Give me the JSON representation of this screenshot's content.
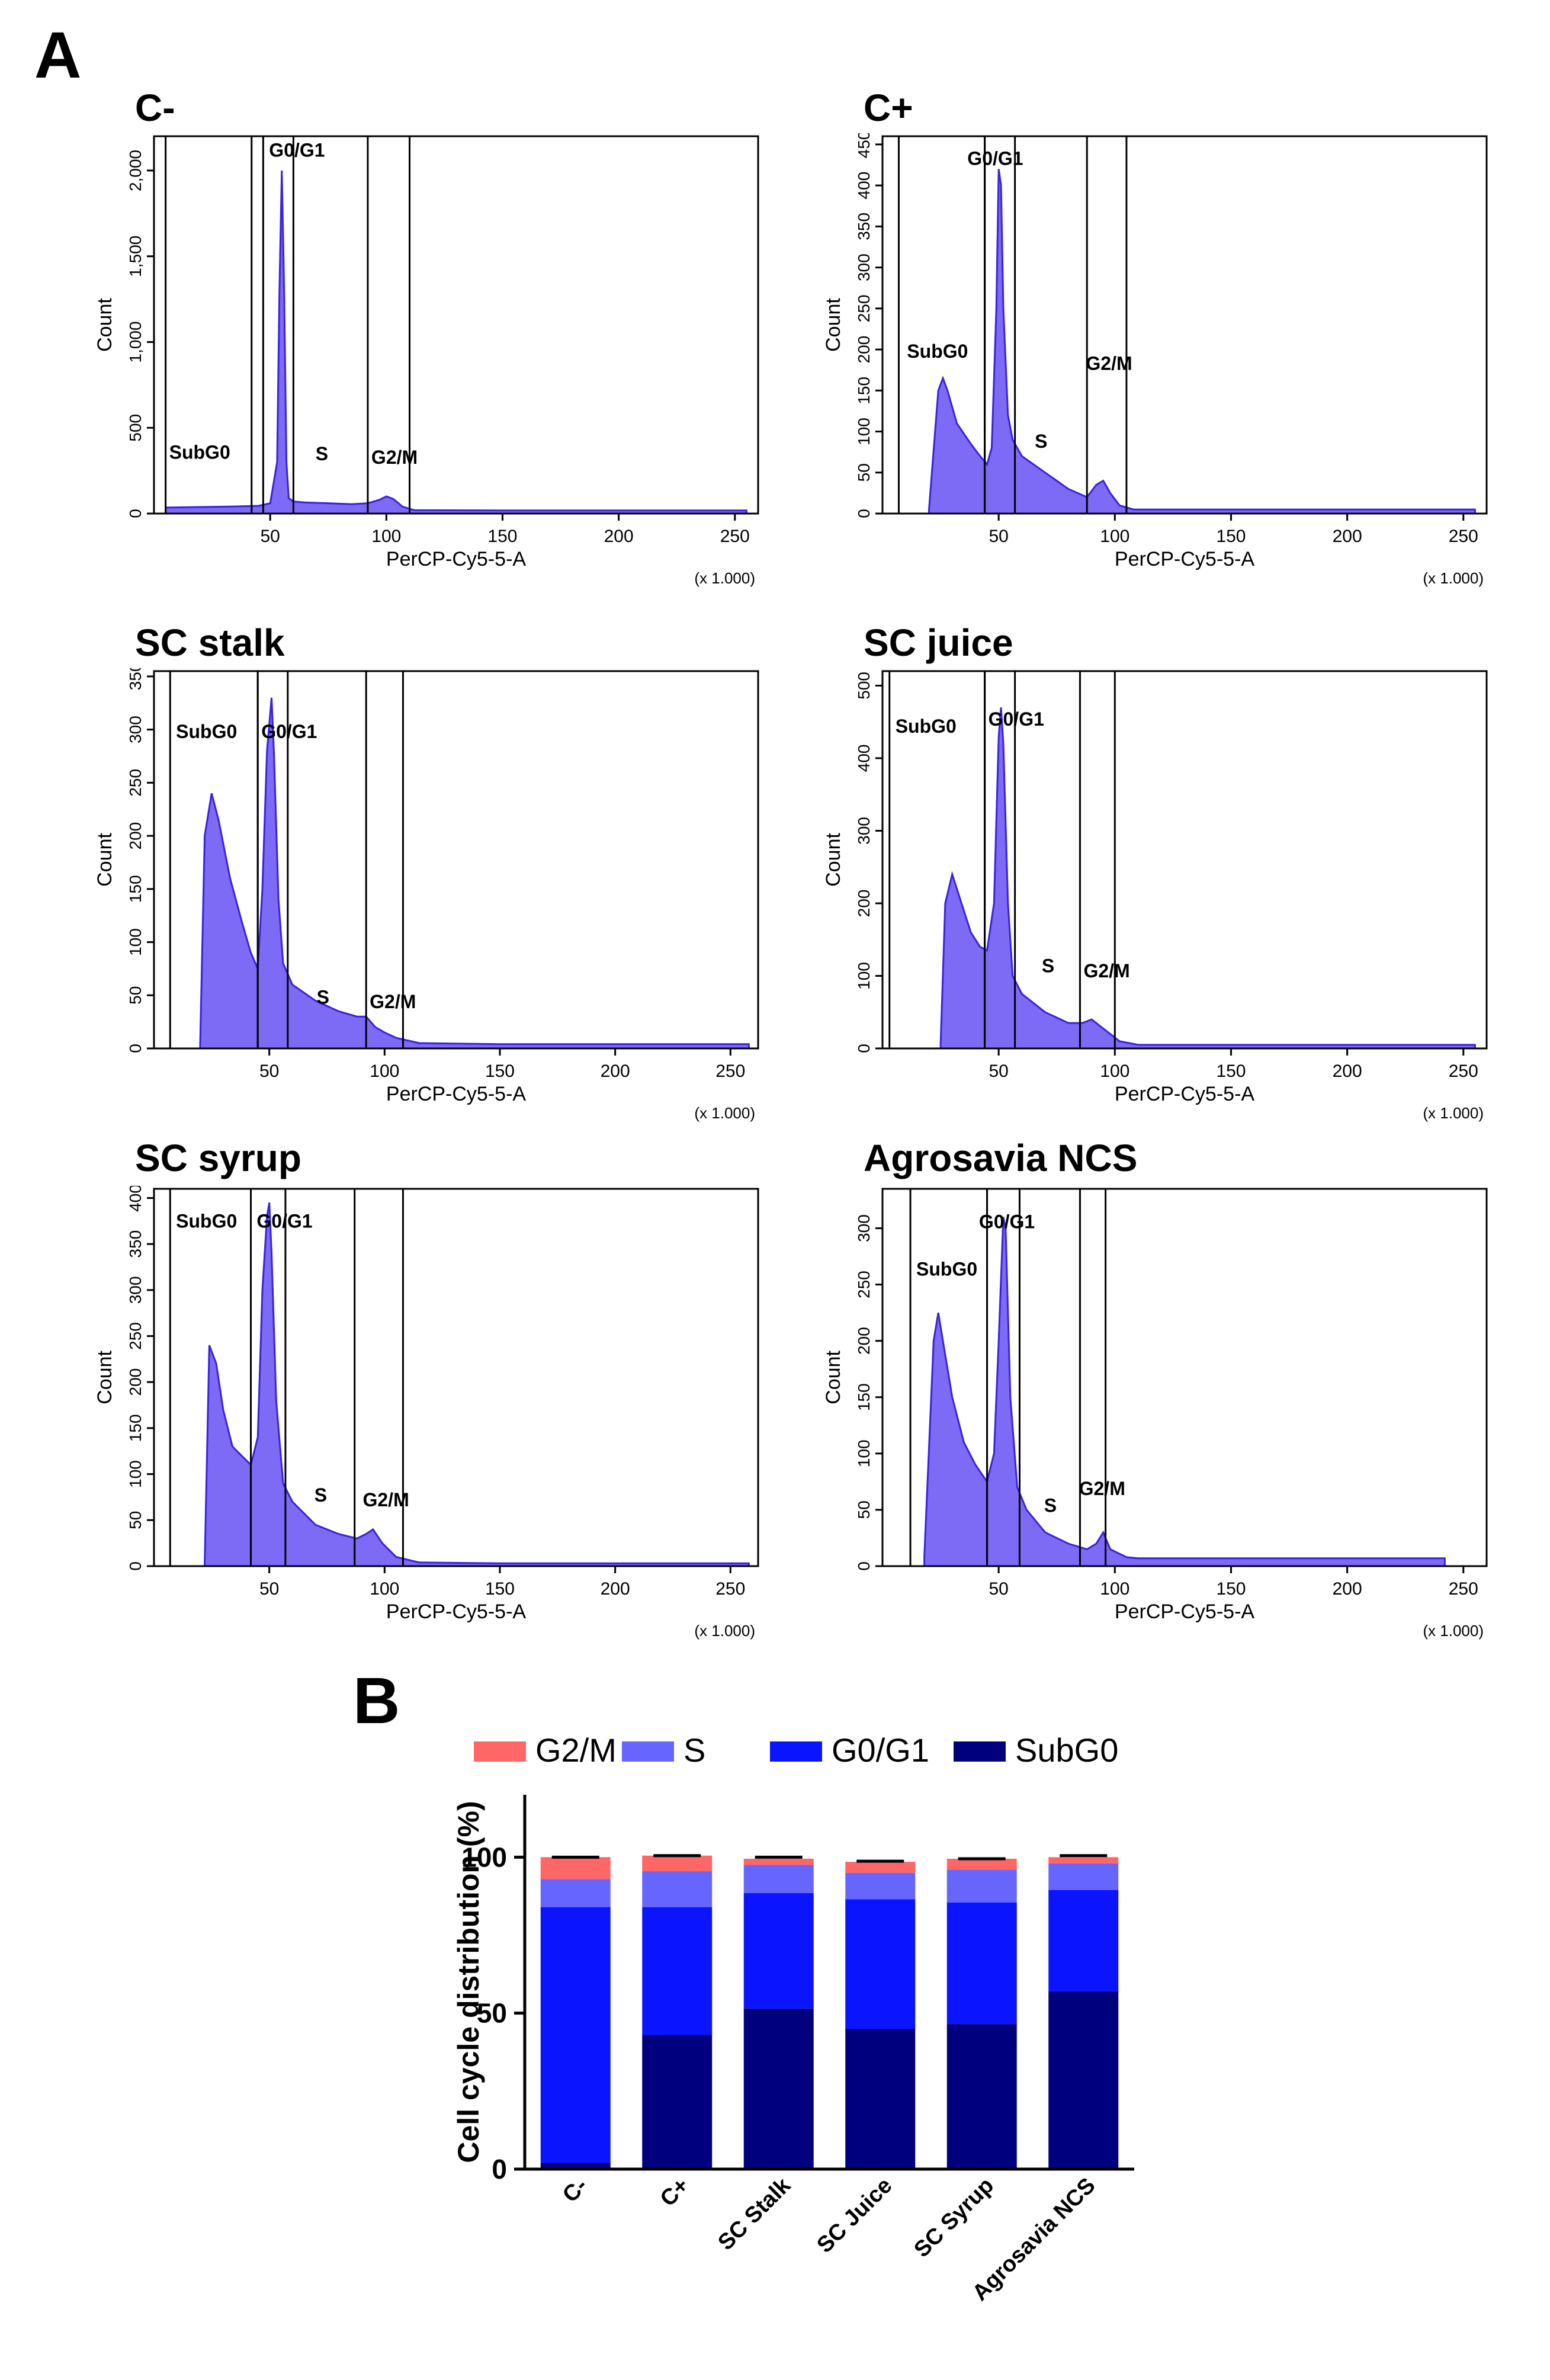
{
  "panel_a_label": "A",
  "panel_b_label": "B",
  "colors": {
    "subg0": "#00007f",
    "g0g1": "#0a14ff",
    "s": "#6666ff",
    "g2m": "#ff6666",
    "hist_fill": "#7d6af5",
    "hist_edge": "#3a22e0"
  },
  "chart_data": [
    {
      "type": "area",
      "title": "C-",
      "xlabel": "PerCP-Cy5-5-A",
      "ylabel": "Count",
      "x_scale_note": "(x 1.000)",
      "xlim": [
        0,
        260
      ],
      "xticks": [
        50,
        100,
        150,
        200,
        250
      ],
      "xtick_labels": [
        "50",
        "100",
        "150",
        "200",
        "250"
      ],
      "ylim": [
        0,
        2200
      ],
      "yticks": [
        0,
        500,
        1000,
        1500,
        2000
      ],
      "ytick_labels": [
        "0",
        "500",
        "1,000",
        "1,500",
        "2,000"
      ],
      "x": [
        5,
        30,
        45,
        50,
        53,
        54,
        55,
        56,
        57,
        58,
        60,
        65,
        75,
        85,
        92,
        97,
        100,
        103,
        107,
        112,
        150,
        200,
        255
      ],
      "y": [
        35,
        40,
        45,
        60,
        300,
        1300,
        2000,
        1300,
        300,
        90,
        70,
        65,
        60,
        55,
        60,
        80,
        100,
        85,
        40,
        20,
        18,
        18,
        18
      ],
      "gates": [
        {
          "label": "SubG0",
          "lines": [
            5,
            42
          ],
          "label_x": 5,
          "label_y": 320
        },
        {
          "label": "G0/G1",
          "lines": [
            47,
            60
          ],
          "label_x": 48,
          "label_y": 2080
        },
        {
          "label": "S",
          "label_x": 68,
          "label_y": 310
        },
        {
          "label": "G2/M",
          "lines": [
            92,
            110
          ],
          "label_x": 92,
          "label_y": 290
        }
      ]
    },
    {
      "type": "area",
      "title": "C+",
      "xlabel": "PerCP-Cy5-5-A",
      "ylabel": "Count",
      "x_scale_note": "(x 1.000)",
      "xlim": [
        0,
        260
      ],
      "xticks": [
        50,
        100,
        150,
        200,
        250
      ],
      "xtick_labels": [
        "50",
        "100",
        "150",
        "200",
        "250"
      ],
      "ylim": [
        0,
        460
      ],
      "yticks": [
        0,
        50,
        100,
        150,
        200,
        250,
        300,
        350,
        400,
        450
      ],
      "ytick_labels": [
        "0",
        "50",
        "100",
        "150",
        "200",
        "250",
        "300",
        "350",
        "400",
        "450"
      ],
      "x": [
        20,
        24,
        26,
        28,
        32,
        38,
        42,
        45,
        47,
        49,
        50,
        51,
        52,
        54,
        56,
        60,
        70,
        80,
        88,
        92,
        95,
        98,
        102,
        108,
        130,
        200,
        255
      ],
      "y": [
        5,
        150,
        165,
        150,
        110,
        85,
        70,
        60,
        80,
        250,
        420,
        400,
        250,
        120,
        90,
        70,
        50,
        30,
        20,
        35,
        40,
        25,
        10,
        5,
        5,
        5,
        5
      ],
      "gates": [
        {
          "label": "SubG0",
          "lines": [
            7,
            44
          ],
          "label_x": 9,
          "label_y": 190
        },
        {
          "label": "G0/G1",
          "lines": [
            44,
            57
          ],
          "label_x": 35,
          "label_y": 425
        },
        {
          "label": "S",
          "label_x": 64,
          "label_y": 80
        },
        {
          "label": "G2/M",
          "lines": [
            88,
            105
          ],
          "label_x": 86,
          "label_y": 175
        }
      ]
    },
    {
      "type": "area",
      "title": "SC stalk",
      "xlabel": "PerCP-Cy5-5-A",
      "ylabel": "Count",
      "x_scale_note": "(x 1.000)",
      "xlim": [
        0,
        262
      ],
      "xticks": [
        50,
        100,
        150,
        200,
        250
      ],
      "xtick_labels": [
        "50",
        "100",
        "150",
        "200",
        "250"
      ],
      "ylim": [
        0,
        355
      ],
      "yticks": [
        0,
        50,
        100,
        150,
        200,
        250,
        300,
        350
      ],
      "ytick_labels": [
        "0",
        "50",
        "100",
        "150",
        "200",
        "250",
        "300",
        "350"
      ],
      "x": [
        20,
        22,
        25,
        28,
        33,
        38,
        42,
        45,
        47,
        49,
        51,
        52,
        54,
        56,
        60,
        70,
        80,
        88,
        92,
        96,
        100,
        105,
        115,
        150,
        200,
        258
      ],
      "y": [
        2,
        200,
        240,
        215,
        160,
        120,
        90,
        75,
        150,
        280,
        330,
        280,
        140,
        80,
        60,
        45,
        35,
        30,
        30,
        20,
        15,
        10,
        5,
        4,
        4,
        4
      ],
      "gates": [
        {
          "label": "SubG0",
          "lines": [
            7,
            45
          ],
          "label_x": 8,
          "label_y": 292
        },
        {
          "label": "G0/G1",
          "lines": [
            45,
            58
          ],
          "label_x": 45,
          "label_y": 292
        },
        {
          "label": "S",
          "label_x": 69,
          "label_y": 42
        },
        {
          "label": "G2/M",
          "lines": [
            92,
            108
          ],
          "label_x": 92,
          "label_y": 38
        }
      ]
    },
    {
      "type": "area",
      "title": "SC juice",
      "xlabel": "PerCP-Cy5-5-A",
      "ylabel": "Count",
      "x_scale_note": "(x 1.000)",
      "xlim": [
        0,
        260
      ],
      "xticks": [
        50,
        100,
        150,
        200,
        250
      ],
      "xtick_labels": [
        "50",
        "100",
        "150",
        "200",
        "250"
      ],
      "ylim": [
        0,
        520
      ],
      "yticks": [
        0,
        100,
        200,
        300,
        400,
        500
      ],
      "ytick_labels": [
        "0",
        "100",
        "200",
        "300",
        "400",
        "500"
      ],
      "x": [
        25,
        27,
        30,
        33,
        38,
        42,
        45,
        48,
        50,
        51,
        52,
        54,
        56,
        60,
        70,
        80,
        86,
        90,
        94,
        98,
        102,
        110,
        150,
        200,
        255
      ],
      "y": [
        5,
        200,
        240,
        210,
        160,
        140,
        135,
        200,
        430,
        470,
        420,
        200,
        100,
        75,
        50,
        35,
        35,
        40,
        30,
        20,
        10,
        5,
        5,
        5,
        5
      ],
      "gates": [
        {
          "label": "SubG0",
          "lines": [
            3,
            44
          ],
          "label_x": 4,
          "label_y": 435
        },
        {
          "label": "G0/G1",
          "lines": [
            44,
            57
          ],
          "label_x": 44,
          "label_y": 445
        },
        {
          "label": "S",
          "label_x": 67,
          "label_y": 105
        },
        {
          "label": "G2/M",
          "lines": [
            85,
            100
          ],
          "label_x": 85,
          "label_y": 98
        }
      ]
    },
    {
      "type": "area",
      "title": "SC syrup",
      "xlabel": "PerCP-Cy5-5-A",
      "ylabel": "Count",
      "x_scale_note": "(x 1.000)",
      "xlim": [
        0,
        262
      ],
      "xticks": [
        50,
        100,
        150,
        200,
        250
      ],
      "xtick_labels": [
        "50",
        "100",
        "150",
        "200",
        "250"
      ],
      "ylim": [
        0,
        410
      ],
      "yticks": [
        0,
        50,
        100,
        150,
        200,
        250,
        300,
        350,
        400
      ],
      "ytick_labels": [
        "0",
        "50",
        "100",
        "150",
        "200",
        "250",
        "300",
        "350",
        "400"
      ],
      "x": [
        22,
        24,
        27,
        30,
        34,
        38,
        42,
        45,
        47,
        49,
        50,
        51,
        53,
        56,
        60,
        70,
        80,
        88,
        92,
        95,
        99,
        105,
        115,
        150,
        200,
        258
      ],
      "y": [
        2,
        240,
        220,
        170,
        130,
        120,
        110,
        140,
        300,
        380,
        395,
        340,
        180,
        90,
        70,
        45,
        35,
        30,
        35,
        40,
        25,
        10,
        4,
        3,
        3,
        3
      ],
      "gates": [
        {
          "label": "SubG0",
          "lines": [
            7,
            42
          ],
          "label_x": 8,
          "label_y": 368
        },
        {
          "label": "G0/G1",
          "lines": [
            42,
            57
          ],
          "label_x": 43,
          "label_y": 368
        },
        {
          "label": "S",
          "label_x": 68,
          "label_y": 70
        },
        {
          "label": "G2/M",
          "lines": [
            87,
            108
          ],
          "label_x": 89,
          "label_y": 65
        }
      ]
    },
    {
      "type": "area",
      "title": "Agrosavia NCS",
      "xlabel": "PerCP-Cy5-5-A",
      "ylabel": "Count",
      "x_scale_note": "(x 1.000)",
      "xlim": [
        0,
        260
      ],
      "xticks": [
        50,
        100,
        150,
        200,
        250
      ],
      "xtick_labels": [
        "50",
        "100",
        "150",
        "200",
        "250"
      ],
      "ylim": [
        0,
        335
      ],
      "yticks": [
        0,
        50,
        100,
        150,
        200,
        250,
        300
      ],
      "ytick_labels": [
        "0",
        "50",
        "100",
        "150",
        "200",
        "250",
        "300"
      ],
      "x": [
        18,
        22,
        24,
        26,
        30,
        35,
        40,
        45,
        48,
        50,
        52,
        53,
        55,
        58,
        62,
        70,
        80,
        88,
        92,
        95,
        98,
        105,
        110,
        150,
        200,
        242
      ],
      "y": [
        8,
        200,
        225,
        200,
        150,
        110,
        90,
        75,
        100,
        200,
        310,
        300,
        150,
        70,
        50,
        30,
        20,
        15,
        20,
        30,
        15,
        8,
        7,
        7,
        7,
        7
      ],
      "gates": [
        {
          "label": "SubG0",
          "lines": [
            12,
            45
          ],
          "label_x": 13,
          "label_y": 258
        },
        {
          "label": "G0/G1",
          "lines": [
            45,
            59
          ],
          "label_x": 40,
          "label_y": 300
        },
        {
          "label": "S",
          "label_x": 68,
          "label_y": 48
        },
        {
          "label": "G2/M",
          "lines": [
            85,
            96
          ],
          "label_x": 83,
          "label_y": 63
        }
      ]
    },
    {
      "type": "bar",
      "stacked": true,
      "categories": [
        "C-",
        "C+",
        "SC Stalk",
        "SC Juice",
        "SC Syrup",
        "Agrosavia NCS"
      ],
      "series": [
        {
          "name": "SubG0",
          "values": [
            2,
            43,
            51.5,
            45,
            46.5,
            57
          ]
        },
        {
          "name": "G0/G1",
          "values": [
            82,
            41,
            37,
            41.5,
            39,
            32.5
          ]
        },
        {
          "name": "S",
          "values": [
            9,
            11.5,
            9,
            8.5,
            10.5,
            8.5
          ]
        },
        {
          "name": "G2/M",
          "values": [
            7,
            5,
            2,
            3.5,
            3.5,
            2
          ]
        }
      ],
      "error_caps": [
        100,
        100.5,
        100,
        98.7,
        99.5,
        100.5
      ],
      "ylabel": "Cell cycle distribution (%)",
      "ylim": [
        0,
        120
      ],
      "yticks": [
        0,
        50,
        100
      ],
      "ytick_labels": [
        "0",
        "50",
        "100"
      ],
      "legend_order": [
        "G2/M",
        "S",
        "G0/G1",
        "SubG0"
      ],
      "legend_position": "top"
    }
  ]
}
